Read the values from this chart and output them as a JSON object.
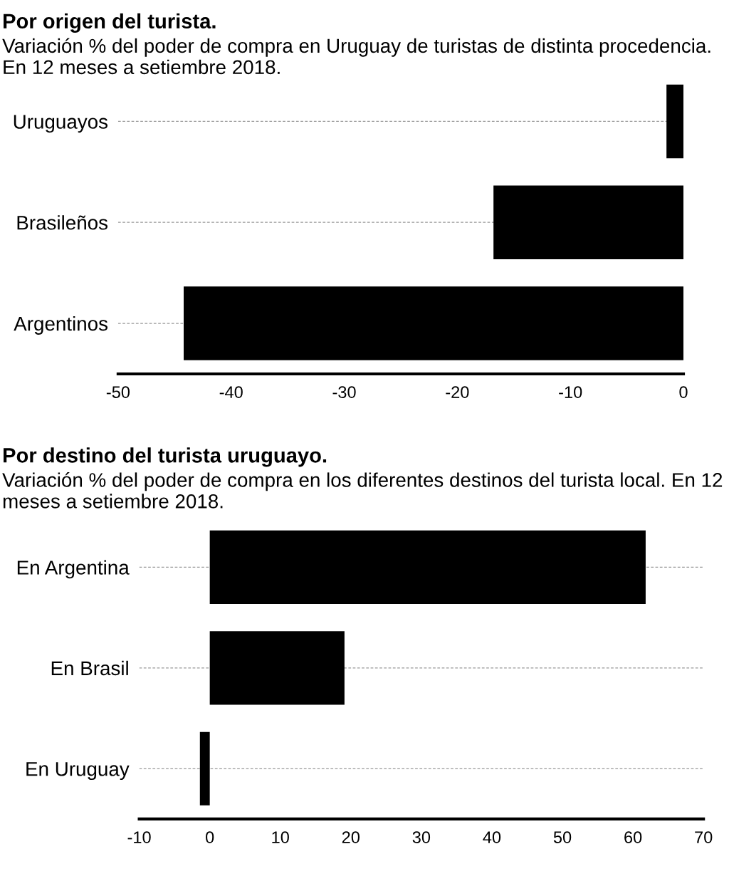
{
  "chart_data": [
    {
      "type": "bar",
      "orientation": "horizontal",
      "title": "Por origen del turista.",
      "subtitle": "Variación % del poder de compra en Uruguay de turistas de distinta procedencia. En 12 meses a setiembre 2018.",
      "categories": [
        "Uruguayos",
        "Brasileños",
        "Argentinos"
      ],
      "values": [
        -1.5,
        -16.8,
        -44.2
      ],
      "color": "#000000",
      "xlim": [
        -50,
        0
      ],
      "xticks": [
        -50,
        -40,
        -30,
        -20,
        -10,
        0
      ],
      "grid": "y"
    },
    {
      "type": "bar",
      "orientation": "horizontal",
      "title": "Por destino del turista uruguayo.",
      "subtitle": "Variación % del poder de compra en los diferentes destinos del turista local. En 12 meses a setiembre 2018.",
      "categories": [
        "En Argentina",
        "En Brasil",
        "En Uruguay"
      ],
      "values": [
        61.8,
        19.1,
        -1.4
      ],
      "color": "#000000",
      "xlim": [
        -10,
        70
      ],
      "xticks": [
        -10,
        0,
        10,
        20,
        30,
        40,
        50,
        60,
        70
      ],
      "grid": "y"
    }
  ]
}
